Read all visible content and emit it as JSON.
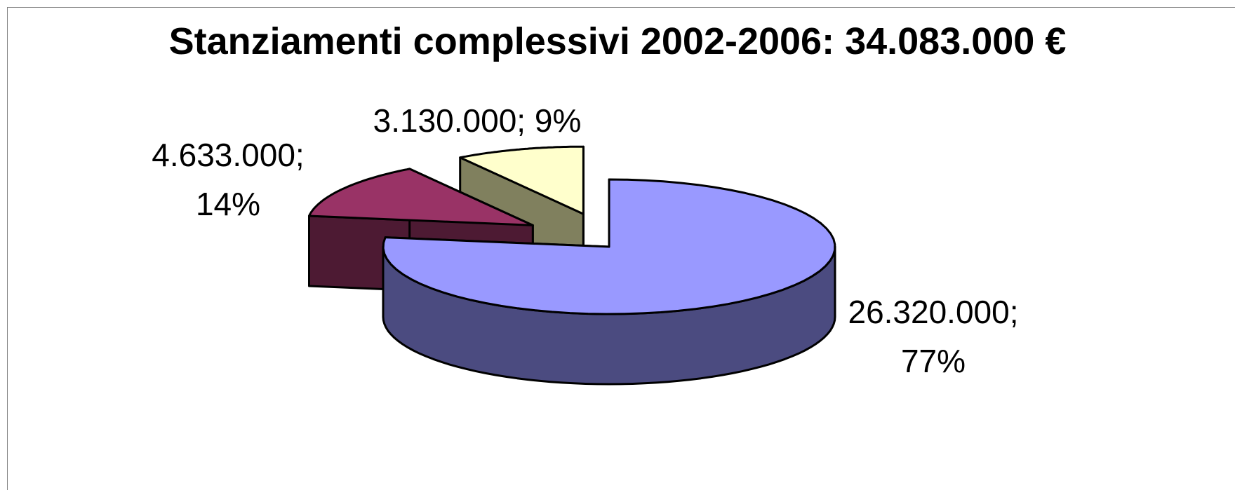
{
  "chart_data": {
    "type": "pie3d",
    "title": "Stanziamenti complessivi 2002-2006: 34.083.000 €",
    "categories": [
      null,
      null,
      null
    ],
    "values": [
      26320000,
      4633000,
      3130000
    ],
    "value_labels": [
      "26.320.000; 77%",
      "4.633.000; 14%",
      "3.130.000; 9%"
    ],
    "colors": [
      "#9999ff",
      "#993366",
      "#ffffcc"
    ],
    "side_colors": [
      "#4b4b80",
      "#4d1a33",
      "#80805e"
    ]
  }
}
